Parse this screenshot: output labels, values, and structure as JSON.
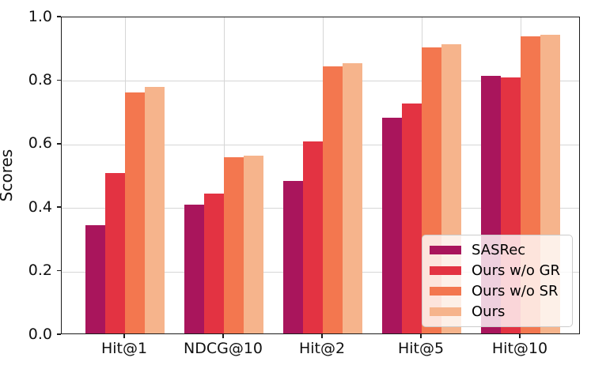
{
  "chart_data": {
    "type": "bar",
    "title": "",
    "xlabel": "",
    "ylabel": "Scores",
    "categories": [
      "Hit@1",
      "NDCG@10",
      "Hit@2",
      "Hit@5",
      "Hit@10"
    ],
    "series": [
      {
        "name": "SASRec",
        "color": "#A9155C",
        "values": [
          0.34,
          0.405,
          0.48,
          0.68,
          0.81
        ]
      },
      {
        "name": "Ours w/o GR",
        "color": "#E33342",
        "values": [
          0.505,
          0.44,
          0.605,
          0.725,
          0.805
        ]
      },
      {
        "name": "Ours w/o SR",
        "color": "#F3774F",
        "values": [
          0.76,
          0.555,
          0.84,
          0.9,
          0.935
        ]
      },
      {
        "name": "Ours",
        "color": "#F6B48C",
        "values": [
          0.775,
          0.56,
          0.85,
          0.91,
          0.94
        ]
      }
    ],
    "ylim": [
      0.0,
      1.0
    ],
    "yticks": [
      0.0,
      0.2,
      0.4,
      0.6,
      0.8,
      1.0
    ],
    "grid": true,
    "legend_position": "lower right"
  }
}
